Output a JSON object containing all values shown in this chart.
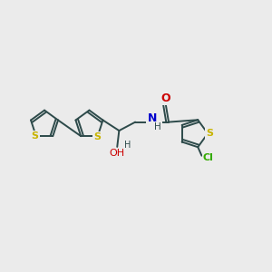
{
  "background_color": "#ebebeb",
  "bond_color": "#2d4a4a",
  "sulfur_color": "#c8b400",
  "nitrogen_color": "#0000cc",
  "oxygen_color": "#cc0000",
  "chlorine_color": "#33aa00",
  "bond_lw": 1.4,
  "figsize": [
    3.0,
    3.0
  ],
  "dpi": 100,
  "xlim": [
    0,
    14
  ],
  "ylim": [
    0,
    10
  ]
}
